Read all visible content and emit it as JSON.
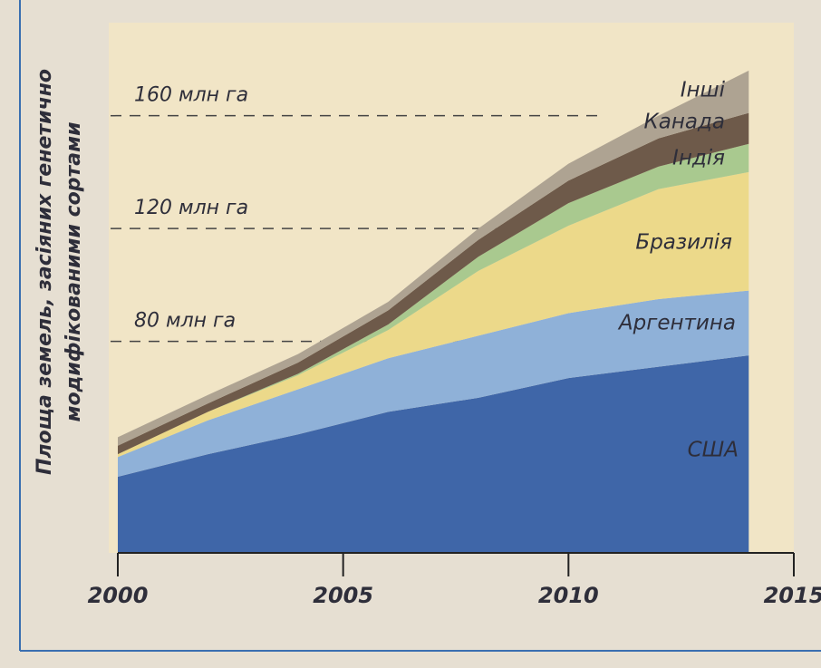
{
  "chart_data": {
    "type": "stacked_area",
    "ylabel": [
      "Площа земель, засіяних генетично",
      "модифікованими сортами"
    ],
    "x": [
      2000,
      2002,
      2004,
      2006,
      2008,
      2010,
      2012,
      2014
    ],
    "xlim": [
      2000,
      2015
    ],
    "xticks": [
      2000,
      2005,
      2010,
      2015
    ],
    "ylim": [
      5,
      193
    ],
    "yticks": [
      {
        "value": 80,
        "label": "80 млн га"
      },
      {
        "value": 120,
        "label": "120 млн га"
      },
      {
        "value": 160,
        "label": "160 млн га"
      }
    ],
    "grid": true,
    "series": [
      {
        "name": "США",
        "color": "#3f66a8",
        "values": [
          32,
          40,
          47,
          55,
          60,
          67,
          71,
          75
        ]
      },
      {
        "name": "Аргентина",
        "color": "#8fb1d8",
        "values": [
          7,
          12,
          16,
          19,
          22,
          23,
          24,
          23
        ]
      },
      {
        "name": "Бразилія",
        "color": "#ecd98a",
        "values": [
          1,
          3,
          5,
          10,
          23,
          31,
          39,
          42
        ]
      },
      {
        "name": "Індія",
        "color": "#a9c98f",
        "values": [
          0,
          0,
          0.5,
          2,
          5,
          8,
          8,
          10
        ]
      },
      {
        "name": "Канада",
        "color": "#6e5a4a",
        "values": [
          3,
          3,
          4,
          5,
          6,
          8,
          10,
          11
        ]
      },
      {
        "name": "Інші",
        "color": "#aea392",
        "values": [
          3,
          3,
          3,
          3,
          4,
          6,
          8,
          15
        ]
      }
    ]
  }
}
